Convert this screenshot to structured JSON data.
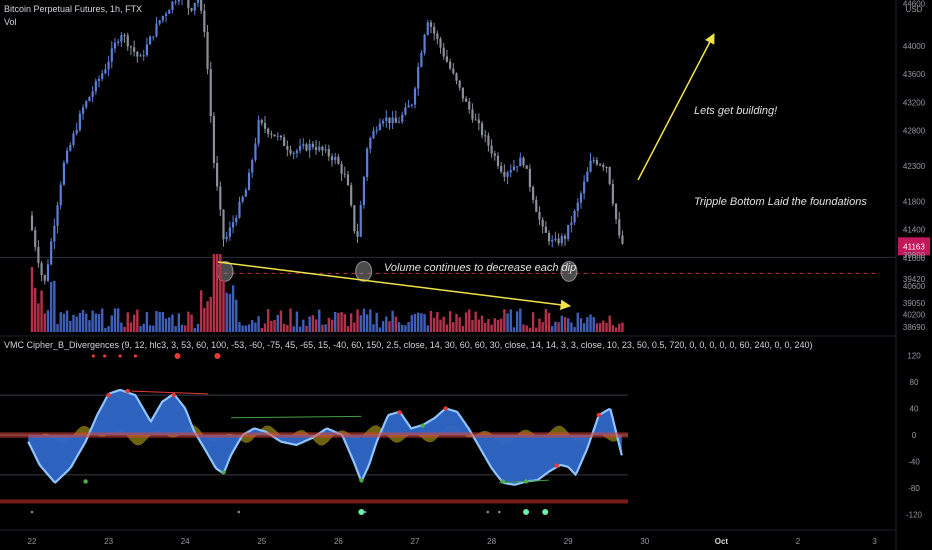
{
  "header": {
    "symbol_title": "Bitcoin Perpetual Futures, 1h, FTX",
    "volume_label": "Vol",
    "indicator_label": "VMC Cipher_B_Divergences (9, 12, hlc3, 3, 53, 60, 100, -53, -60, -75, 45, -65, 15, -40, 60, 150, 2.5, close, 14, 30, 60, 60, 30, close, 14, 14, 3, 3, close, 10, 23, 50, 0.5, 720, 0, 0, 0, 0, 0, 60, 240, 0, 0, 240)"
  },
  "annotations": {
    "building": "Lets get building!",
    "triple_bottom": "Tripple Bottom Laid the foundations",
    "volume_note": "Volume continues to decrease each dip"
  },
  "colors": {
    "up_candle": "#5b7fd6",
    "down_candle": "#8a8f9a",
    "vol_up": "#3f5fb8",
    "vol_down": "#b3324a",
    "arrow": "#f2e24a",
    "support": "#b0334a",
    "wave_fill": "#2f67c9",
    "wave_edge": "#8fc4ff",
    "money_flow_pos": "#c9b11c",
    "money_flow_neg": "#d9453d",
    "price_tag": "#c2185b"
  },
  "chart_data": [
    {
      "type": "candlestick",
      "title": "Bitcoin Perpetual Futures, 1h, FTX",
      "x_ticks": [
        "22",
        "23",
        "24",
        "25",
        "26",
        "27",
        "28",
        "29",
        "30",
        "Oct",
        "2",
        "3"
      ],
      "y_axis_unit": "USD",
      "y_ticks": [
        40200,
        40600,
        41000,
        41400,
        41800,
        42300,
        42800,
        43200,
        43600,
        44000,
        44600
      ],
      "ylim": [
        39950,
        44650
      ],
      "current_price_label": "41163",
      "support_level": 40780,
      "series": [
        {
          "name": "price_path",
          "x": [
            22.0,
            22.2,
            22.45,
            22.7,
            23.0,
            23.2,
            23.45,
            23.7,
            24.0,
            24.1,
            24.2,
            24.3,
            24.42,
            24.55,
            24.7,
            24.85,
            25.0,
            25.2,
            25.45,
            25.7,
            26.0,
            26.15,
            26.28,
            26.42,
            26.6,
            26.8,
            27.0,
            27.2,
            27.45,
            27.7,
            28.0,
            28.2,
            28.45,
            28.7,
            28.85,
            29.0,
            29.15,
            29.35,
            29.55,
            29.72
          ],
          "y": [
            41600,
            40600,
            42300,
            43100,
            43700,
            44200,
            43800,
            44350,
            44800,
            44500,
            44700,
            44200,
            42300,
            41200,
            41600,
            42000,
            42900,
            42750,
            42500,
            42600,
            42400,
            42100,
            41200,
            42600,
            43000,
            42900,
            43200,
            44400,
            43800,
            43200,
            42600,
            42200,
            42400,
            41400,
            41200,
            41300,
            41700,
            42400,
            42300,
            41200
          ]
        }
      ],
      "triple_bottoms_x": [
        24.52,
        26.33,
        29.01
      ]
    },
    {
      "type": "bar",
      "title": "Vol",
      "y_ticks": [
        38690,
        39050,
        39420,
        39800
      ],
      "volume_trend": {
        "from_x": 24.45,
        "to_x": 29.0
      },
      "volume_spike_x": 24.42
    },
    {
      "type": "area",
      "title": "VMC Cipher_B_Divergences",
      "y_ticks": [
        120,
        80,
        40,
        0,
        -40,
        -80,
        -120
      ],
      "ylim": [
        -140,
        140
      ],
      "series": [
        {
          "name": "wave",
          "x": [
            21.95,
            22.1,
            22.3,
            22.5,
            22.7,
            22.85,
            23.0,
            23.15,
            23.35,
            23.55,
            23.7,
            23.85,
            24.0,
            24.12,
            24.25,
            24.4,
            24.5,
            24.6,
            24.75,
            24.9,
            25.05,
            25.25,
            25.45,
            25.65,
            25.85,
            26.05,
            26.2,
            26.3,
            26.4,
            26.5,
            26.65,
            26.8,
            26.95,
            27.1,
            27.25,
            27.4,
            27.55,
            27.7,
            27.85,
            28.0,
            28.15,
            28.3,
            28.45,
            28.6,
            28.75,
            28.9,
            29.0,
            29.1,
            29.25,
            29.4,
            29.55,
            29.72
          ],
          "y": [
            -10,
            -45,
            -72,
            -50,
            -10,
            30,
            62,
            68,
            60,
            20,
            50,
            62,
            40,
            5,
            -20,
            -50,
            -58,
            -30,
            0,
            10,
            5,
            -10,
            -15,
            -5,
            10,
            0,
            -40,
            -70,
            -45,
            -10,
            30,
            35,
            10,
            15,
            25,
            40,
            35,
            10,
            -20,
            -50,
            -72,
            -75,
            -70,
            -68,
            -55,
            -45,
            -48,
            -60,
            -20,
            30,
            40,
            -40
          ]
        }
      ],
      "wavetrend_levels": [
        60,
        -60
      ]
    }
  ]
}
